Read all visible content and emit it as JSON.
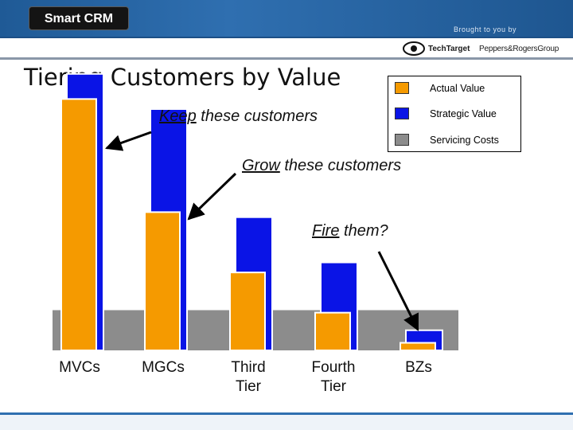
{
  "header": {
    "logo": "Smart CRM",
    "brought_by": "Brought to you by",
    "sponsor_1": "TechTarget",
    "sponsor_2": "Peppers&RogersGroup"
  },
  "callouts": {
    "keep_word": "Keep",
    "keep_rest": " these customers",
    "grow_word": "Grow",
    "grow_rest": " these customers",
    "fire_word": "Fire",
    "fire_rest": " them?"
  },
  "colors": {
    "actual": "#f59a00",
    "strategic": "#0a14e6",
    "costs": "#8c8c8c"
  },
  "chart_data": {
    "type": "bar",
    "title": "Tiering Customers by Value",
    "xlabel": "",
    "ylabel": "",
    "categories": [
      "MVCs",
      "MGCs",
      "Third Tier",
      "Fourth Tier",
      "BZs"
    ],
    "series": [
      {
        "name": "Actual Value",
        "values": [
          100,
          55,
          31,
          15,
          3
        ]
      },
      {
        "name": "Strategic Value",
        "values": [
          110,
          96,
          53,
          35,
          8
        ]
      },
      {
        "name": "Servicing Costs",
        "values": [
          16,
          16,
          16,
          16,
          16
        ]
      }
    ],
    "ylim": [
      0,
      115
    ],
    "grid": false,
    "legend": "top-right"
  }
}
